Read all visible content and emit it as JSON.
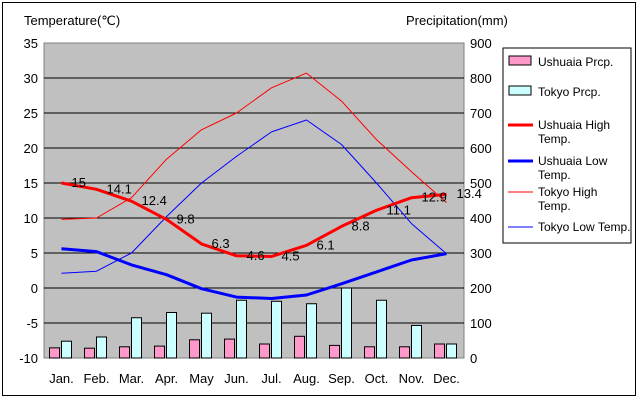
{
  "chart_data": {
    "type": "bar",
    "left_axis_title": "Temperature(℃)",
    "right_axis_title": "Precipitation(mm)",
    "categories": [
      "Jan.",
      "Feb.",
      "Mar.",
      "Apr.",
      "May",
      "Jun.",
      "Jul.",
      "Aug.",
      "Sep.",
      "Oct.",
      "Nov.",
      "Dec."
    ],
    "left_ylim": [
      -10,
      35
    ],
    "left_ticks": [
      "-10",
      "-5",
      "0",
      "5",
      "10",
      "15",
      "20",
      "25",
      "30",
      "35"
    ],
    "right_ylim": [
      0,
      900
    ],
    "right_ticks": [
      "0",
      "100",
      "200",
      "300",
      "400",
      "500",
      "600",
      "700",
      "800",
      "900"
    ],
    "grid": true,
    "legend_position": "right",
    "bar_series": [
      {
        "name": "Ushuaia Prcp.",
        "color": "#ff99cc",
        "values": [
          29,
          28,
          32,
          34,
          52,
          54,
          40,
          62,
          36,
          32,
          32,
          40
        ]
      },
      {
        "name": "Tokyo Prcp.",
        "color": "#ccffff",
        "values": [
          48,
          60,
          115,
          130,
          128,
          165,
          162,
          155,
          200,
          165,
          93,
          40
        ]
      }
    ],
    "line_series": [
      {
        "name": "Ushuaia High Temp.",
        "color": "#ff0000",
        "width": 3,
        "values": [
          15,
          14.1,
          12.4,
          9.8,
          6.3,
          4.6,
          4.5,
          6.1,
          8.8,
          11.1,
          12.9,
          13.4
        ]
      },
      {
        "name": "Ushuaia Low Temp.",
        "color": "#0000ff",
        "width": 3,
        "values": [
          5.6,
          5.2,
          3.3,
          1.9,
          -0.1,
          -1.3,
          -1.5,
          -1.0,
          0.6,
          2.3,
          4.0,
          4.9
        ]
      },
      {
        "name": "Tokyo High Temp.",
        "color": "#ff0000",
        "width": 1,
        "values": [
          9.8,
          10.0,
          12.9,
          18.4,
          22.6,
          25.0,
          28.6,
          30.7,
          26.7,
          21.2,
          16.6,
          12.2
        ]
      },
      {
        "name": "Tokyo Low Temp.",
        "color": "#0000ff",
        "width": 1,
        "values": [
          2.1,
          2.4,
          5.0,
          10.2,
          15.0,
          18.8,
          22.3,
          24.0,
          20.5,
          15.0,
          9.2,
          4.9
        ]
      }
    ],
    "data_labels": [
      "15",
      "14.1",
      "12.4",
      "9.8",
      "6.3",
      "4.6",
      "4.5",
      "6.1",
      "8.8",
      "11.1",
      "12.9",
      "13.4"
    ],
    "legend": [
      {
        "label": "Ushuaia Prcp.",
        "kind": "box",
        "color": "#ff99cc"
      },
      {
        "label": "Tokyo Prcp.",
        "kind": "box",
        "color": "#ccffff"
      },
      {
        "label": "Ushuaia High Temp.",
        "kind": "line",
        "color": "#ff0000",
        "width": 3
      },
      {
        "label": "Ushuaia Low Temp.",
        "kind": "line",
        "color": "#0000ff",
        "width": 3
      },
      {
        "label": "Tokyo High Temp.",
        "kind": "line",
        "color": "#ff0000",
        "width": 1
      },
      {
        "label": "Tokyo Low Temp.",
        "kind": "line",
        "color": "#0000ff",
        "width": 1
      }
    ]
  }
}
